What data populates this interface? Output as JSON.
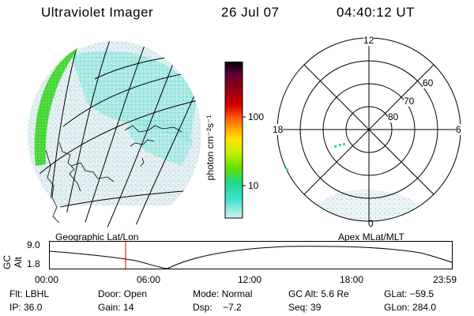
{
  "header": {
    "instrument": "Ultraviolet Imager",
    "date": "26 Jul 07",
    "time": "04:40:12 UT"
  },
  "panels": {
    "geo_label": "Geographic Lat/Lon",
    "polar_label": "Apex MLat/MLT"
  },
  "colorbar": {
    "unit_label": "photon cm⁻²s⁻¹",
    "ticks": [
      "100",
      "10"
    ],
    "colors": [
      "#000000",
      "#5a003a",
      "#8a0014",
      "#d40000",
      "#ff5a00",
      "#ffb000",
      "#ffe600",
      "#c8f000",
      "#60e000",
      "#20d890",
      "#40e0d0",
      "#d8f0f0"
    ]
  },
  "polar": {
    "mlt_labels": [
      "12",
      "18",
      "6",
      "0"
    ],
    "lat_labels": [
      "60",
      "70",
      "80"
    ]
  },
  "timeline": {
    "ylabel": "GC Alt",
    "yticks": [
      "9.0",
      "1.8"
    ],
    "xticks": [
      "00:00",
      "06:00",
      "12:00",
      "18:00",
      "23:59"
    ],
    "marker_time": "04:40"
  },
  "info": {
    "filter": "Flt: LBHL",
    "door": "Door: Open",
    "mode": "Mode: Normal",
    "gc_alt": "GC Alt: 5.6 Re",
    "glat": "GLat: −59.5",
    "ip": "IP: 36.0",
    "gain": "Gain: 14",
    "dsp": "Dsp:    −7.2",
    "seq": "Seq: 39",
    "glon": "GLon: 284.0"
  }
}
